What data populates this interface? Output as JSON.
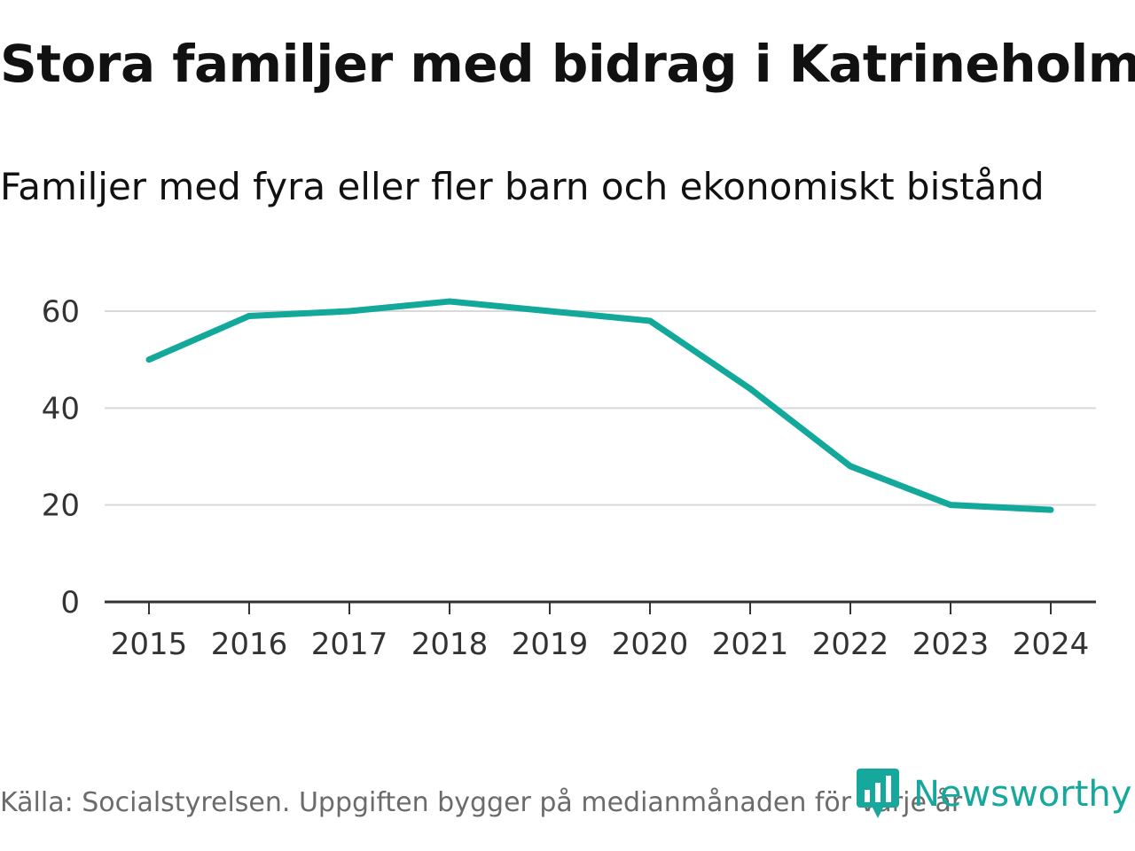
{
  "header": {
    "title": "Stora familjer med bidrag i Katrineholm",
    "subtitle": "Familjer med fyra eller fler barn och ekonomiskt bistånd"
  },
  "footer": {
    "source": "Källa: Socialstyrelsen. Uppgiften bygger på medianmånaden för varje år",
    "brand": "Newsworthy"
  },
  "colors": {
    "line": "#12a89a",
    "grid": "#d9d9d9",
    "axis": "#333333",
    "brand": "#16a89c"
  },
  "chart_data": {
    "type": "line",
    "title": "Stora familjer med bidrag i Katrineholm",
    "subtitle": "Familjer med fyra eller fler barn och ekonomiskt bistånd",
    "xlabel": "",
    "ylabel": "",
    "categories": [
      "2015",
      "2016",
      "2017",
      "2018",
      "2019",
      "2020",
      "2021",
      "2022",
      "2023",
      "2024"
    ],
    "series": [
      {
        "name": "Familjer",
        "values": [
          50,
          59,
          60,
          62,
          60,
          58,
          44,
          28,
          20,
          19
        ]
      }
    ],
    "ylim": [
      0,
      70
    ],
    "yticks": [
      0,
      20,
      40,
      60
    ],
    "ytick_labels": [
      "0",
      "20",
      "40",
      "60"
    ],
    "grid": true,
    "legend": "none"
  }
}
